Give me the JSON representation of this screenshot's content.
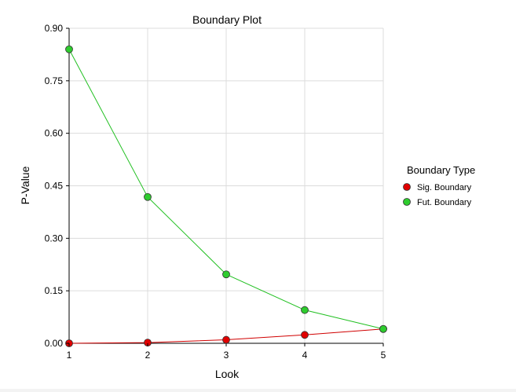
{
  "chart_data": {
    "type": "line",
    "title": "Boundary Plot",
    "xlabel": "Look",
    "ylabel": "P-Value",
    "x": [
      1,
      2,
      3,
      4,
      5
    ],
    "x_ticks": [
      "1",
      "2",
      "3",
      "4",
      "5"
    ],
    "xlim": [
      1,
      5
    ],
    "ylim": [
      0,
      0.9
    ],
    "y_ticks": [
      "0.00",
      "0.15",
      "0.30",
      "0.45",
      "0.60",
      "0.75",
      "0.90"
    ],
    "y_tick_values": [
      0,
      0.15,
      0.3,
      0.45,
      0.6,
      0.75,
      0.9
    ],
    "grid": true,
    "legend": {
      "title": "Boundary Type",
      "placement": "right"
    },
    "series": [
      {
        "name": "Sig. Boundary",
        "color": "#e00000",
        "line_color": "#d00000",
        "values": [
          0.0,
          0.002,
          0.01,
          0.024,
          0.041
        ]
      },
      {
        "name": "Fut. Boundary",
        "color": "#2ecc2e",
        "line_color": "#22c022",
        "values": [
          0.84,
          0.418,
          0.197,
          0.095,
          0.041
        ]
      }
    ]
  }
}
